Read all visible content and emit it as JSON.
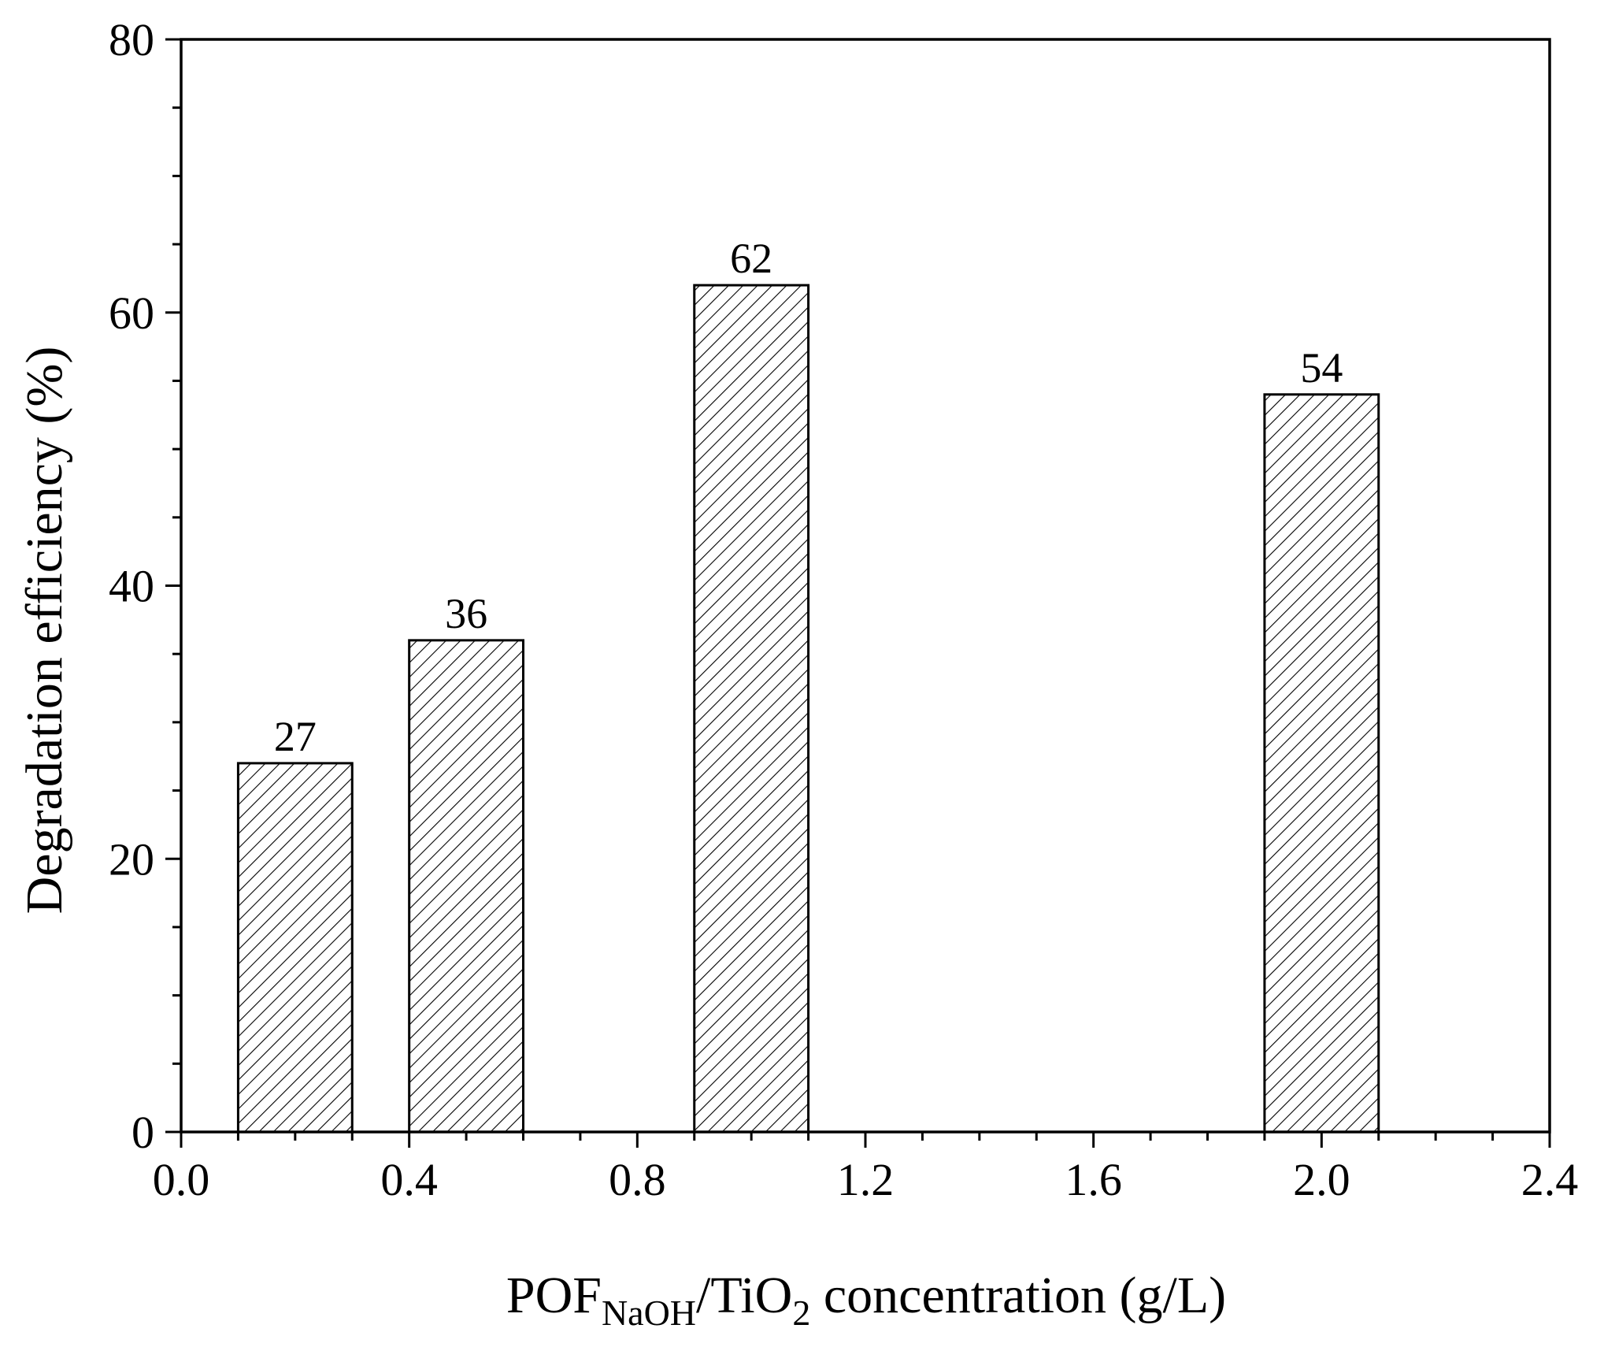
{
  "chart_data": {
    "type": "bar",
    "title": "",
    "x": [
      0.2,
      0.5,
      1.0,
      2.0
    ],
    "values": [
      27,
      36,
      62,
      54
    ],
    "data_labels": [
      "27",
      "36",
      "62",
      "54"
    ],
    "bar_width": 0.2,
    "bar_pattern": "diagonal-hatch",
    "xlim": [
      0.0,
      2.4
    ],
    "ylim": [
      0,
      80
    ],
    "x_ticks": [
      0.0,
      0.4,
      0.8,
      1.2,
      1.6,
      2.0,
      2.4
    ],
    "x_tick_labels": [
      "0.0",
      "0.4",
      "0.8",
      "1.2",
      "1.6",
      "2.0",
      "2.4"
    ],
    "y_ticks": [
      0,
      20,
      40,
      60,
      80
    ],
    "y_tick_labels": [
      "0",
      "20",
      "40",
      "60",
      "80"
    ],
    "xlabel": {
      "main": "POF",
      "sub1": "NaOH",
      "mid": "/TiO",
      "sub2": "2",
      "end": " concentration (g/L)"
    },
    "ylabel": "Degradation efficiency (%)",
    "grid": false,
    "legend": "none",
    "colors": {
      "bar_fill": "#ffffff",
      "bar_stroke": "#000000",
      "hatch": "#000000",
      "axis": "#000000"
    }
  }
}
